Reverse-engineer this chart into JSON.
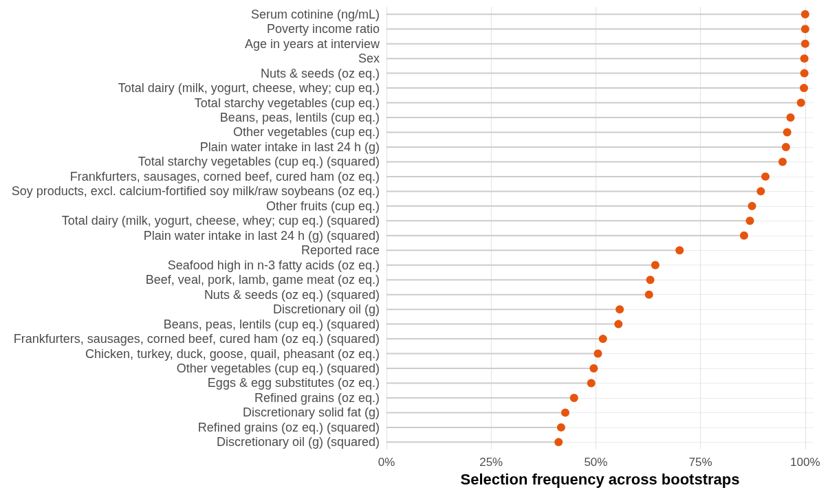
{
  "chart_data": {
    "type": "lollipop",
    "orientation": "horizontal",
    "xlabel": "Selection frequency across bootstraps",
    "categories": [
      "Serum cotinine (ng/mL)",
      "Poverty income ratio",
      "Age in years at interview",
      "Sex",
      "Nuts & seeds (oz eq.)",
      "Total dairy (milk, yogurt, cheese, whey; cup eq.)",
      "Total starchy vegetables (cup eq.)",
      "Beans, peas, lentils (cup eq.)",
      "Other vegetables (cup eq.)",
      "Plain water intake in last 24 h (g)",
      "Total starchy vegetables (cup eq.) (squared)",
      "Frankfurters, sausages, corned beef, cured ham (oz eq.)",
      "Soy products, excl. calcium-fortified soy milk/raw soybeans (oz eq.)",
      "Other fruits (cup eq.)",
      "Total dairy (milk, yogurt, cheese, whey; cup eq.) (squared)",
      "Plain water intake in last 24 h (g) (squared)",
      "Reported race",
      "Seafood high in n-3 fatty acids (oz eq.)",
      "Beef, veal, pork, lamb, game meat (oz eq.)",
      "Nuts & seeds (oz eq.) (squared)",
      "Discretionary oil (g)",
      "Beans, peas, lentils (cup eq.) (squared)",
      "Frankfurters, sausages, corned beef, cured ham (oz eq.) (squared)",
      "Chicken, turkey, duck, goose, quail, pheasant (oz eq.)",
      "Other vegetables (cup eq.) (squared)",
      "Eggs & egg substitutes (oz eq.)",
      "Refined grains (oz eq.)",
      "Discretionary solid fat (g)",
      "Refined grains (oz eq.) (squared)",
      "Discretionary oil (g) (squared)"
    ],
    "values": [
      100,
      100,
      100,
      99.8,
      99.8,
      99.7,
      99.0,
      96.5,
      95.7,
      95.4,
      94.6,
      90.5,
      89.4,
      87.3,
      86.8,
      85.4,
      70.0,
      64.2,
      63.0,
      62.7,
      55.7,
      55.4,
      51.7,
      50.5,
      49.5,
      48.9,
      44.8,
      42.7,
      41.7,
      41.1
    ],
    "color": "#e6550d",
    "marker": "circle",
    "xlim": [
      0,
      102
    ],
    "xticks": [
      {
        "value": 0,
        "label": "0%"
      },
      {
        "value": 25,
        "label": "25%"
      },
      {
        "value": 50,
        "label": "50%"
      },
      {
        "value": 75,
        "label": "75%"
      },
      {
        "value": 100,
        "label": "100%"
      }
    ],
    "grid": true
  }
}
